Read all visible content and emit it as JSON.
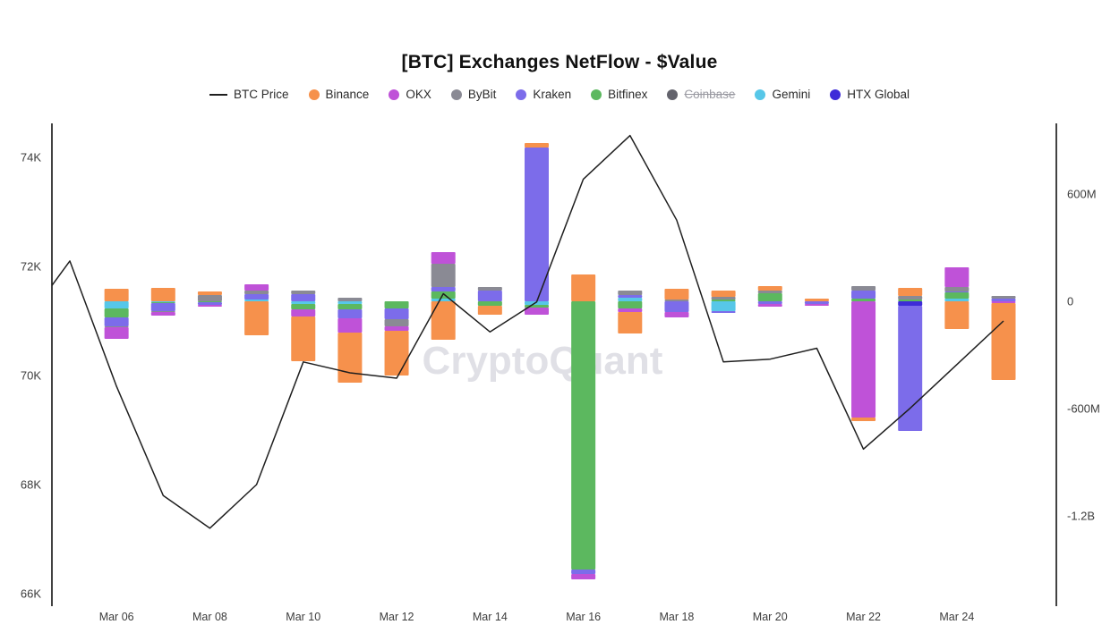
{
  "title": "[BTC] Exchanges NetFlow - $Value",
  "watermark": "CryptoQuant",
  "legend": [
    {
      "name": "BTC Price",
      "type": "line",
      "color": "#1f1f1f",
      "disabled": false
    },
    {
      "name": "Binance",
      "type": "dot",
      "color": "#f6914c",
      "disabled": false
    },
    {
      "name": "OKX",
      "type": "dot",
      "color": "#bf52d8",
      "disabled": false
    },
    {
      "name": "ByBit",
      "type": "dot",
      "color": "#8a8a94",
      "disabled": false
    },
    {
      "name": "Kraken",
      "type": "dot",
      "color": "#7c6cea",
      "disabled": false
    },
    {
      "name": "Bitfinex",
      "type": "dot",
      "color": "#5cb85f",
      "disabled": false
    },
    {
      "name": "Coinbase",
      "type": "dot",
      "color": "#63636c",
      "disabled": true
    },
    {
      "name": "Gemini",
      "type": "dot",
      "color": "#57c7e8",
      "disabled": false
    },
    {
      "name": "HTX Global",
      "type": "dot",
      "color": "#3e2bd8",
      "disabled": false
    }
  ],
  "chart_data": {
    "type": "combo",
    "bar_mode": "stacked",
    "bar_unit": "USD millions",
    "x": [
      "Mar 05",
      "Mar 06",
      "Mar 07",
      "Mar 08",
      "Mar 09",
      "Mar 10",
      "Mar 11",
      "Mar 12",
      "Mar 13",
      "Mar 14",
      "Mar 15",
      "Mar 16",
      "Mar 17",
      "Mar 18",
      "Mar 19",
      "Mar 20",
      "Mar 21",
      "Mar 22",
      "Mar 23",
      "Mar 24",
      "Mar 25"
    ],
    "x_tick_labels": [
      "Mar 06",
      "Mar 08",
      "Mar 10",
      "Mar 12",
      "Mar 14",
      "Mar 16",
      "Mar 18",
      "Mar 20",
      "Mar 22",
      "Mar 24"
    ],
    "x_tick_indices": [
      1,
      3,
      5,
      7,
      9,
      11,
      13,
      15,
      17,
      19
    ],
    "left_axis": {
      "ticks": [
        66,
        68,
        70,
        72,
        74
      ],
      "tick_labels": [
        "66K",
        "68K",
        "70K",
        "72K",
        "74K"
      ],
      "unit": "K USD",
      "min": 66,
      "max": 74
    },
    "right_axis": {
      "ticks": [
        -1200,
        -600,
        0,
        600
      ],
      "tick_labels": [
        "-1.2B",
        "-600M",
        "0",
        "600M"
      ],
      "unit": "USD",
      "min": -1650,
      "max": 985
    },
    "grid": false,
    "legend_position": "top",
    "stack_order": [
      "HTX Global",
      "Gemini",
      "Bitfinex",
      "Kraken",
      "ByBit",
      "OKX",
      "Binance"
    ],
    "series": [
      {
        "name": "Binance",
        "color": "#f6914c",
        "values": [
          0,
          70,
          75,
          20,
          -190,
          -250,
          -280,
          -250,
          -215,
          -50,
          25,
          150,
          -120,
          60,
          35,
          25,
          15,
          -20,
          45,
          -155,
          -430
        ]
      },
      {
        "name": "OKX",
        "color": "#bf52d8",
        "values": [
          0,
          -65,
          -20,
          -10,
          35,
          -40,
          -80,
          -25,
          65,
          0,
          -40,
          -30,
          -20,
          -30,
          0,
          -15,
          -10,
          -650,
          0,
          110,
          -10
        ]
      },
      {
        "name": "ByBit",
        "color": "#8a8a94",
        "values": [
          0,
          -5,
          -5,
          35,
          20,
          20,
          20,
          -40,
          130,
          20,
          0,
          0,
          25,
          10,
          15,
          15,
          0,
          25,
          20,
          25,
          15
        ]
      },
      {
        "name": "Kraken",
        "color": "#7c6cea",
        "values": [
          0,
          -50,
          -45,
          -15,
          30,
          40,
          -50,
          -60,
          25,
          60,
          860,
          -25,
          15,
          -60,
          -10,
          -15,
          -15,
          45,
          -700,
          5,
          15
        ]
      },
      {
        "name": "Bitfinex",
        "color": "#5cb85f",
        "values": [
          0,
          -50,
          -5,
          -5,
          0,
          -30,
          -30,
          -40,
          40,
          -25,
          -15,
          -1500,
          -40,
          0,
          10,
          45,
          0,
          15,
          10,
          35,
          0
        ]
      },
      {
        "name": "Gemini",
        "color": "#57c7e8",
        "values": [
          0,
          -40,
          -5,
          0,
          10,
          -15,
          -15,
          0,
          15,
          0,
          -20,
          0,
          20,
          0,
          -55,
          0,
          0,
          0,
          0,
          15,
          0
        ]
      },
      {
        "name": "HTX Global",
        "color": "#3e2bd8",
        "values": [
          0,
          0,
          0,
          0,
          0,
          0,
          0,
          0,
          0,
          0,
          0,
          0,
          0,
          0,
          0,
          0,
          0,
          0,
          -25,
          0,
          0
        ]
      }
    ],
    "line_series": {
      "name": "BTC Price",
      "color": "#1f1f1f",
      "unit": "K USD",
      "edge_start": 71.65,
      "values": [
        72.1,
        69.8,
        67.8,
        67.2,
        68.0,
        70.25,
        70.05,
        69.95,
        71.5,
        70.8,
        71.35,
        73.6,
        74.4,
        72.85,
        70.25,
        70.3,
        70.5,
        68.65,
        69.4,
        70.2,
        71.0
      ]
    }
  }
}
